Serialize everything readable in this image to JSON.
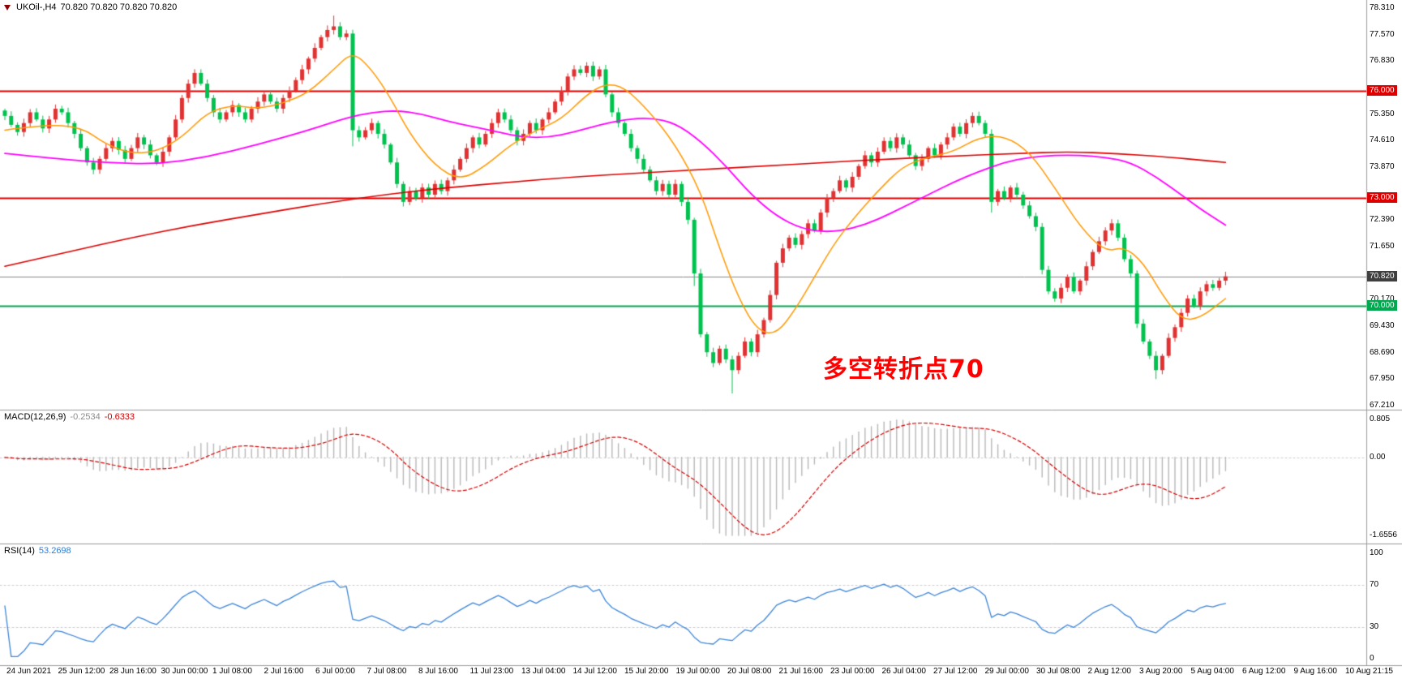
{
  "header": {
    "symbol_period": "UKOil-,H4",
    "ohlc": "70.820 70.820 70.820 70.820"
  },
  "annotation": {
    "text": "多空转折点70",
    "color": "#ff0000"
  },
  "macd_panel": {
    "label": "MACD(12,26,9)",
    "value_main": "-0.2534",
    "value_signal": "-0.6333"
  },
  "rsi_panel": {
    "label": "RSI(14)",
    "value": "53.2698"
  },
  "colors": {
    "candle_up": "#e03232",
    "candle_down": "#00c24e",
    "ma_fast": "#ff9900",
    "ma_mid": "#ff00ff",
    "ma_slow": "#dd0000",
    "level_red": "#dd0000",
    "level_green": "#00a84f",
    "level_current_line": "#888888",
    "box_red": "#dd0000",
    "box_green": "#00a84f",
    "box_current": "#3f3f3f",
    "macd_hist": "#b8b8b8",
    "macd_signal": "#d40000",
    "rsi_line": "#3e86d8",
    "separator": "#9a9a9a",
    "grid_dotted": "#cccccc",
    "axis_text": "#000000"
  },
  "chart_data": {
    "type": "candlestick",
    "symbol": "UKOil-",
    "timeframe": "H4",
    "price_axis": {
      "ylim": [
        67.21,
        78.31
      ],
      "ticks": [
        {
          "text": "78.310",
          "price": 78.31
        },
        {
          "text": "77.570",
          "price": 77.57
        },
        {
          "text": "76.830",
          "price": 76.83
        },
        {
          "text": "76.000",
          "price": 76.0,
          "type": "level-red"
        },
        {
          "text": "75.350",
          "price": 75.35
        },
        {
          "text": "74.610",
          "price": 74.61
        },
        {
          "text": "73.870",
          "price": 73.87
        },
        {
          "text": "73.000",
          "price": 73.0,
          "type": "level-red"
        },
        {
          "text": "72.390",
          "price": 72.39
        },
        {
          "text": "71.650",
          "price": 71.65
        },
        {
          "text": "70.820",
          "price": 70.82,
          "type": "level-current"
        },
        {
          "text": "70.170",
          "price": 70.17
        },
        {
          "text": "70.000",
          "price": 70.0,
          "type": "level-green"
        },
        {
          "text": "69.430",
          "price": 69.43
        },
        {
          "text": "68.690",
          "price": 68.69
        },
        {
          "text": "67.950",
          "price": 67.95
        },
        {
          "text": "67.210",
          "price": 67.21
        }
      ]
    },
    "levels": [
      {
        "price": 76.0,
        "kind": "resistance"
      },
      {
        "price": 73.0,
        "kind": "resistance"
      },
      {
        "price": 70.0,
        "kind": "support"
      },
      {
        "price": 70.82,
        "kind": "current"
      }
    ],
    "candles": {
      "first_open": 75.45,
      "closes": [
        75.3,
        75.05,
        74.85,
        75.1,
        75.4,
        75.2,
        74.95,
        75.2,
        75.5,
        75.4,
        75.1,
        74.8,
        74.4,
        74.0,
        73.8,
        74.1,
        74.4,
        74.6,
        74.35,
        74.1,
        74.4,
        74.7,
        74.5,
        74.2,
        74.0,
        74.3,
        74.7,
        75.2,
        75.8,
        76.2,
        76.5,
        76.2,
        75.8,
        75.4,
        75.2,
        75.4,
        75.6,
        75.4,
        75.2,
        75.5,
        75.7,
        75.9,
        75.7,
        75.5,
        75.8,
        76.0,
        76.3,
        76.6,
        76.9,
        77.2,
        77.5,
        77.7,
        77.8,
        77.5,
        77.6,
        74.9,
        74.7,
        74.9,
        75.1,
        74.8,
        74.5,
        74.0,
        73.4,
        72.9,
        73.2,
        73.0,
        73.3,
        73.1,
        73.4,
        73.2,
        73.5,
        73.8,
        74.1,
        74.4,
        74.7,
        74.5,
        74.8,
        75.1,
        75.4,
        75.2,
        74.9,
        74.6,
        74.8,
        75.1,
        74.9,
        75.2,
        75.4,
        75.7,
        76.0,
        76.4,
        76.6,
        76.5,
        76.7,
        76.4,
        76.6,
        75.9,
        75.4,
        75.1,
        74.8,
        74.4,
        74.1,
        73.8,
        73.5,
        73.2,
        73.4,
        73.1,
        73.4,
        72.9,
        72.4,
        70.9,
        69.2,
        68.7,
        68.4,
        68.8,
        68.5,
        68.2,
        68.6,
        69.0,
        68.7,
        69.2,
        69.6,
        70.3,
        71.2,
        71.6,
        71.9,
        71.7,
        72.0,
        72.3,
        72.1,
        72.6,
        73.0,
        73.2,
        73.5,
        73.3,
        73.6,
        73.9,
        74.2,
        74.0,
        74.3,
        74.6,
        74.4,
        74.7,
        74.5,
        74.2,
        73.9,
        74.1,
        74.4,
        74.2,
        74.5,
        74.7,
        75.0,
        74.8,
        75.1,
        75.3,
        75.1,
        74.8,
        72.9,
        73.2,
        73.0,
        73.3,
        73.1,
        72.8,
        72.5,
        72.2,
        71.0,
        70.4,
        70.2,
        70.5,
        70.8,
        70.4,
        70.7,
        71.1,
        71.5,
        71.8,
        72.1,
        72.3,
        71.9,
        71.3,
        70.9,
        69.5,
        69.0,
        68.6,
        68.2,
        68.6,
        69.1,
        69.4,
        69.8,
        70.2,
        70.0,
        70.4,
        70.6,
        70.5,
        70.7,
        70.82
      ],
      "wick_overrides": {
        "52": {
          "high": 78.1
        },
        "55": {
          "low": 74.45
        },
        "109": {
          "low": 70.55
        },
        "115": {
          "low": 67.55
        },
        "156": {
          "low": 72.6
        },
        "182": {
          "low": 67.95
        }
      }
    },
    "moving_averages": [
      {
        "name": "ma-fast-orange",
        "points": [
          [
            0,
            74.9
          ],
          [
            6,
            75.05
          ],
          [
            12,
            75.0
          ],
          [
            16,
            74.5
          ],
          [
            20,
            74.25
          ],
          [
            24,
            74.3
          ],
          [
            28,
            74.7
          ],
          [
            32,
            75.4
          ],
          [
            36,
            75.6
          ],
          [
            40,
            75.5
          ],
          [
            44,
            75.65
          ],
          [
            48,
            75.95
          ],
          [
            52,
            76.6
          ],
          [
            55,
            77.1
          ],
          [
            58,
            76.6
          ],
          [
            61,
            75.8
          ],
          [
            64,
            74.8
          ],
          [
            68,
            73.9
          ],
          [
            72,
            73.5
          ],
          [
            76,
            73.9
          ],
          [
            80,
            74.5
          ],
          [
            84,
            74.9
          ],
          [
            88,
            75.2
          ],
          [
            92,
            75.9
          ],
          [
            95,
            76.2
          ],
          [
            98,
            76.1
          ],
          [
            102,
            75.4
          ],
          [
            106,
            74.5
          ],
          [
            110,
            73.2
          ],
          [
            113,
            71.6
          ],
          [
            116,
            70.2
          ],
          [
            119,
            69.3
          ],
          [
            122,
            69.2
          ],
          [
            125,
            69.9
          ],
          [
            128,
            70.8
          ],
          [
            131,
            71.7
          ],
          [
            134,
            72.4
          ],
          [
            138,
            73.2
          ],
          [
            142,
            73.9
          ],
          [
            146,
            74.15
          ],
          [
            150,
            74.3
          ],
          [
            154,
            74.7
          ],
          [
            158,
            74.75
          ],
          [
            162,
            74.3
          ],
          [
            166,
            73.3
          ],
          [
            170,
            72.2
          ],
          [
            174,
            71.5
          ],
          [
            177,
            71.65
          ],
          [
            180,
            71.2
          ],
          [
            183,
            70.3
          ],
          [
            186,
            69.6
          ],
          [
            189,
            69.65
          ],
          [
            193,
            70.2
          ]
        ]
      },
      {
        "name": "ma-mid-magenta",
        "points": [
          [
            0,
            74.25
          ],
          [
            8,
            74.1
          ],
          [
            16,
            74.0
          ],
          [
            24,
            73.95
          ],
          [
            32,
            74.15
          ],
          [
            40,
            74.5
          ],
          [
            48,
            74.9
          ],
          [
            54,
            75.25
          ],
          [
            58,
            75.4
          ],
          [
            62,
            75.45
          ],
          [
            66,
            75.35
          ],
          [
            70,
            75.15
          ],
          [
            74,
            75.0
          ],
          [
            78,
            74.85
          ],
          [
            82,
            74.7
          ],
          [
            86,
            74.7
          ],
          [
            90,
            74.85
          ],
          [
            94,
            75.05
          ],
          [
            98,
            75.2
          ],
          [
            102,
            75.25
          ],
          [
            106,
            75.1
          ],
          [
            110,
            74.6
          ],
          [
            114,
            73.9
          ],
          [
            118,
            73.1
          ],
          [
            122,
            72.5
          ],
          [
            126,
            72.15
          ],
          [
            130,
            72.05
          ],
          [
            134,
            72.15
          ],
          [
            138,
            72.4
          ],
          [
            142,
            72.75
          ],
          [
            146,
            73.1
          ],
          [
            150,
            73.45
          ],
          [
            154,
            73.75
          ],
          [
            158,
            74.0
          ],
          [
            162,
            74.15
          ],
          [
            166,
            74.2
          ],
          [
            170,
            74.2
          ],
          [
            174,
            74.15
          ],
          [
            178,
            74.0
          ],
          [
            182,
            73.6
          ],
          [
            186,
            73.1
          ],
          [
            189,
            72.7
          ],
          [
            193,
            72.25
          ]
        ]
      },
      {
        "name": "ma-slow-red",
        "points": [
          [
            0,
            71.1
          ],
          [
            10,
            71.5
          ],
          [
            20,
            71.9
          ],
          [
            30,
            72.25
          ],
          [
            40,
            72.55
          ],
          [
            50,
            72.85
          ],
          [
            60,
            73.1
          ],
          [
            70,
            73.3
          ],
          [
            80,
            73.45
          ],
          [
            90,
            73.6
          ],
          [
            100,
            73.7
          ],
          [
            110,
            73.8
          ],
          [
            120,
            73.9
          ],
          [
            130,
            74.0
          ],
          [
            140,
            74.1
          ],
          [
            150,
            74.18
          ],
          [
            160,
            74.25
          ],
          [
            168,
            74.3
          ],
          [
            176,
            74.25
          ],
          [
            184,
            74.15
          ],
          [
            190,
            74.05
          ],
          [
            193,
            74.0
          ]
        ]
      }
    ],
    "indicators": [
      {
        "type": "macd",
        "params": [
          12,
          26,
          9
        ],
        "last_main": -0.2534,
        "last_signal": -0.6333,
        "ylim": [
          -1.6556,
          0.805
        ],
        "axis_ticks": [
          {
            "text": "0.805",
            "value": 0.805
          },
          {
            "text": "0.00",
            "value": 0
          },
          {
            "text": "-1.6556",
            "value": -1.6556
          }
        ]
      },
      {
        "type": "rsi",
        "params": [
          14
        ],
        "last_value": 53.2698,
        "levels": [
          70,
          30
        ],
        "ylim": [
          0,
          100
        ],
        "axis_ticks": [
          {
            "text": "100",
            "value": 100
          },
          {
            "text": "70",
            "value": 70
          },
          {
            "text": "30",
            "value": 30
          },
          {
            "text": "0",
            "value": 0
          }
        ]
      }
    ],
    "time_axis": [
      "24 Jun 2021",
      "25 Jun 12:00",
      "28 Jun 16:00",
      "30 Jun 00:00",
      "1 Jul 08:00",
      "2 Jul 16:00",
      "6 Jul 00:00",
      "7 Jul 08:00",
      "8 Jul 16:00",
      "11 Jul 23:00",
      "13 Jul 04:00",
      "14 Jul 12:00",
      "15 Jul 20:00",
      "19 Jul 00:00",
      "20 Jul 08:00",
      "21 Jul 16:00",
      "23 Jul 00:00",
      "26 Jul 04:00",
      "27 Jul 12:00",
      "29 Jul 00:00",
      "30 Jul 08:00",
      "2 Aug 12:00",
      "3 Aug 20:00",
      "5 Aug 04:00",
      "6 Aug 12:00",
      "9 Aug 16:00",
      "10 Aug 21:15"
    ]
  }
}
